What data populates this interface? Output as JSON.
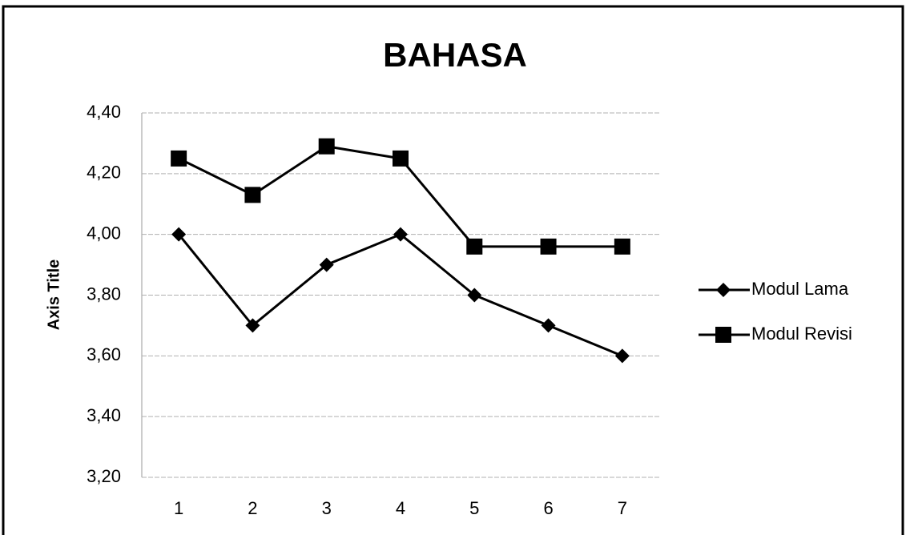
{
  "chart_data": {
    "type": "line",
    "title": "BAHASA",
    "y_label": "Axis Title",
    "categories": [
      "1",
      "2",
      "3",
      "4",
      "5",
      "6",
      "7"
    ],
    "series": [
      {
        "name": "Modul Lama",
        "color": "#000000",
        "marker": "diamond",
        "values": [
          4.0,
          3.7,
          3.9,
          4.0,
          3.8,
          3.7,
          3.6
        ]
      },
      {
        "name": "Modul Revisi",
        "color": "#000000",
        "marker": "square",
        "values": [
          4.25,
          4.13,
          4.29,
          4.25,
          3.96,
          3.96,
          3.96
        ]
      }
    ],
    "ylim": [
      3.2,
      4.4
    ],
    "yticks": [
      {
        "value": 3.2,
        "label": "3,20"
      },
      {
        "value": 3.4,
        "label": "3,40"
      },
      {
        "value": 3.6,
        "label": "3,60"
      },
      {
        "value": 3.8,
        "label": "3,80"
      },
      {
        "value": 4.0,
        "label": "4,00"
      },
      {
        "value": 4.2,
        "label": "4,20"
      },
      {
        "value": 4.4,
        "label": "4,40"
      }
    ],
    "grid": true,
    "legend": "right"
  }
}
